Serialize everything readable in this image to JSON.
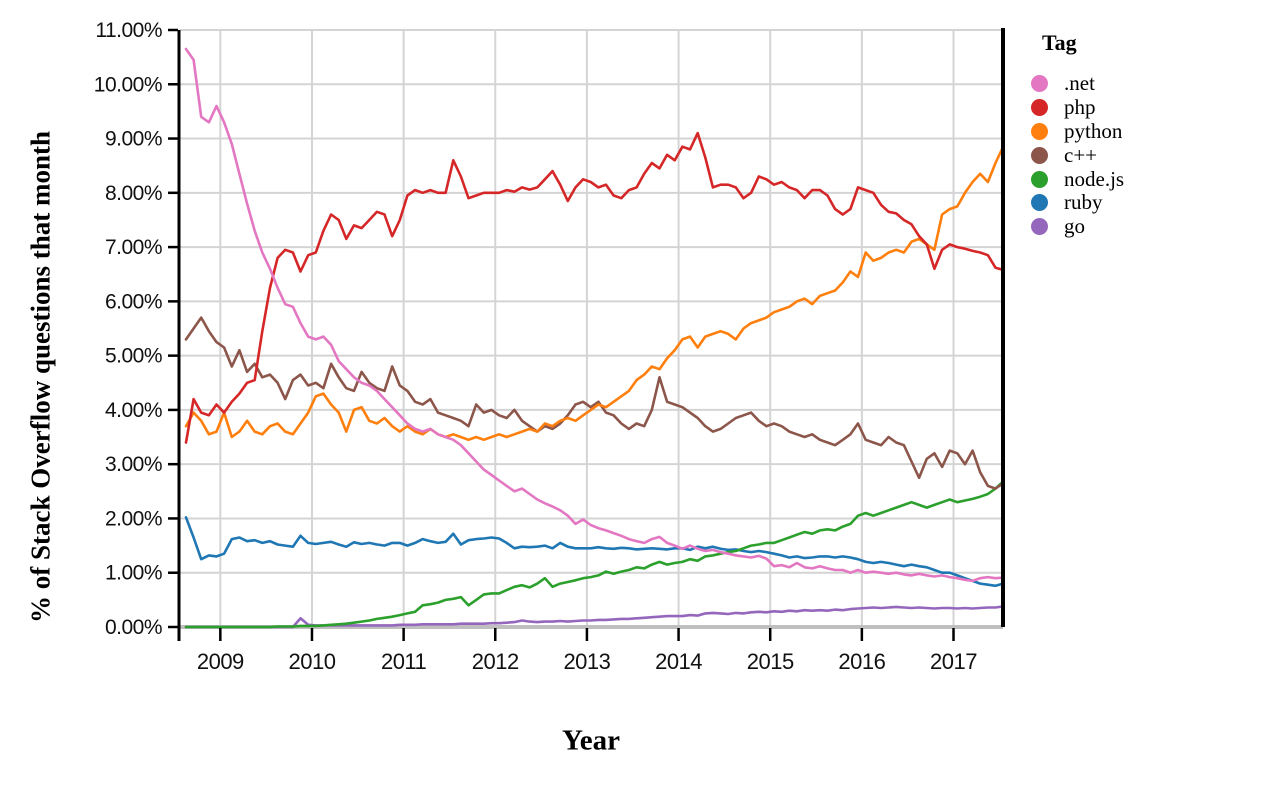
{
  "chart_data": {
    "type": "line",
    "title": "",
    "xlabel": "Year",
    "ylabel": "% of Stack Overflow questions that month",
    "legend_title": "Tag",
    "legend_position": "right",
    "grid": true,
    "background": "#ffffff",
    "grid_color": "#d4d4d4",
    "baseline_color": "#bfbfbf",
    "axis_color": "#000000",
    "x_unit": "month",
    "x_start": "2008-08",
    "x_end": "2017-07",
    "xlim": [
      2008.56,
      2017.54
    ],
    "ylim": [
      0,
      11
    ],
    "x_ticks": [
      2009,
      2010,
      2011,
      2012,
      2013,
      2014,
      2015,
      2016,
      2017
    ],
    "y_tick_values": [
      0,
      1,
      2,
      3,
      4,
      5,
      6,
      7,
      8,
      9,
      10,
      11
    ],
    "y_tick_labels": [
      "0.00%",
      "1.00%",
      "2.00%",
      "3.00%",
      "4.00%",
      "5.00%",
      "6.00%",
      "7.00%",
      "8.00%",
      "9.00%",
      "10.00%",
      "11.00%"
    ],
    "series": [
      {
        "name": ".net",
        "color": "#e377c2",
        "values": [
          10.65,
          10.45,
          9.4,
          9.3,
          9.6,
          9.3,
          8.9,
          8.35,
          7.8,
          7.3,
          6.9,
          6.6,
          6.25,
          5.95,
          5.9,
          5.6,
          5.35,
          5.3,
          5.35,
          5.2,
          4.9,
          4.75,
          4.6,
          4.5,
          4.45,
          4.35,
          4.2,
          4.05,
          3.9,
          3.75,
          3.65,
          3.6,
          3.65,
          3.55,
          3.5,
          3.45,
          3.35,
          3.2,
          3.05,
          2.9,
          2.8,
          2.7,
          2.6,
          2.5,
          2.55,
          2.45,
          2.35,
          2.28,
          2.22,
          2.15,
          2.05,
          1.9,
          1.98,
          1.88,
          1.82,
          1.78,
          1.73,
          1.68,
          1.62,
          1.58,
          1.55,
          1.62,
          1.66,
          1.55,
          1.5,
          1.44,
          1.5,
          1.44,
          1.4,
          1.42,
          1.38,
          1.35,
          1.32,
          1.3,
          1.28,
          1.31,
          1.26,
          1.12,
          1.14,
          1.1,
          1.18,
          1.1,
          1.08,
          1.12,
          1.08,
          1.05,
          1.05,
          1.0,
          1.05,
          1.0,
          1.02,
          1.0,
          0.98,
          1.0,
          0.97,
          0.95,
          0.98,
          0.95,
          0.93,
          0.95,
          0.92,
          0.9,
          0.87,
          0.85,
          0.9,
          0.92,
          0.9,
          0.91
        ]
      },
      {
        "name": "php",
        "color": "#d62728",
        "values": [
          3.4,
          4.2,
          3.95,
          3.9,
          4.1,
          3.95,
          4.15,
          4.3,
          4.5,
          4.55,
          5.45,
          6.25,
          6.8,
          6.95,
          6.9,
          6.55,
          6.85,
          6.9,
          7.3,
          7.6,
          7.5,
          7.15,
          7.4,
          7.35,
          7.5,
          7.65,
          7.6,
          7.2,
          7.5,
          7.95,
          8.05,
          8.0,
          8.05,
          8.0,
          8.0,
          8.6,
          8.3,
          7.9,
          7.95,
          8.0,
          8.0,
          8.0,
          8.05,
          8.02,
          8.1,
          8.06,
          8.1,
          8.25,
          8.4,
          8.15,
          7.85,
          8.1,
          8.25,
          8.2,
          8.1,
          8.15,
          7.95,
          7.9,
          8.05,
          8.1,
          8.35,
          8.55,
          8.45,
          8.7,
          8.6,
          8.85,
          8.8,
          9.1,
          8.65,
          8.1,
          8.15,
          8.15,
          8.1,
          7.9,
          8.0,
          8.3,
          8.25,
          8.15,
          8.2,
          8.1,
          8.05,
          7.9,
          8.05,
          8.05,
          7.95,
          7.7,
          7.6,
          7.7,
          8.1,
          8.05,
          8.0,
          7.78,
          7.65,
          7.62,
          7.5,
          7.42,
          7.2,
          7.05,
          6.6,
          6.95,
          7.05,
          7.0,
          6.97,
          6.93,
          6.9,
          6.85,
          6.62,
          6.58
        ]
      },
      {
        "name": "python",
        "color": "#ff7f0e",
        "values": [
          3.7,
          3.95,
          3.8,
          3.55,
          3.6,
          3.95,
          3.5,
          3.6,
          3.8,
          3.6,
          3.55,
          3.7,
          3.75,
          3.6,
          3.55,
          3.75,
          3.95,
          4.25,
          4.3,
          4.1,
          3.95,
          3.6,
          4.0,
          4.05,
          3.8,
          3.75,
          3.85,
          3.7,
          3.6,
          3.7,
          3.6,
          3.55,
          3.65,
          3.55,
          3.5,
          3.55,
          3.5,
          3.45,
          3.5,
          3.45,
          3.5,
          3.55,
          3.5,
          3.55,
          3.6,
          3.65,
          3.6,
          3.75,
          3.7,
          3.8,
          3.85,
          3.8,
          3.9,
          4.0,
          4.1,
          4.05,
          4.15,
          4.25,
          4.35,
          4.55,
          4.65,
          4.8,
          4.75,
          4.95,
          5.1,
          5.3,
          5.35,
          5.15,
          5.35,
          5.4,
          5.45,
          5.4,
          5.3,
          5.5,
          5.6,
          5.65,
          5.7,
          5.8,
          5.85,
          5.9,
          6.0,
          6.05,
          5.95,
          6.1,
          6.15,
          6.2,
          6.35,
          6.55,
          6.45,
          6.9,
          6.75,
          6.8,
          6.9,
          6.95,
          6.9,
          7.1,
          7.15,
          7.05,
          6.95,
          7.6,
          7.7,
          7.75,
          8.0,
          8.2,
          8.35,
          8.2,
          8.55,
          8.85
        ]
      },
      {
        "name": "c++",
        "color": "#8c564b",
        "values": [
          5.3,
          5.5,
          5.7,
          5.45,
          5.25,
          5.15,
          4.8,
          5.1,
          4.7,
          4.85,
          4.6,
          4.65,
          4.5,
          4.2,
          4.55,
          4.65,
          4.45,
          4.5,
          4.4,
          4.85,
          4.6,
          4.4,
          4.35,
          4.7,
          4.5,
          4.4,
          4.35,
          4.8,
          4.45,
          4.35,
          4.15,
          4.1,
          4.2,
          3.95,
          3.9,
          3.85,
          3.8,
          3.7,
          4.1,
          3.95,
          4.0,
          3.9,
          3.85,
          4.0,
          3.8,
          3.7,
          3.6,
          3.7,
          3.65,
          3.75,
          3.9,
          4.1,
          4.15,
          4.05,
          4.15,
          3.95,
          3.9,
          3.75,
          3.65,
          3.75,
          3.7,
          4.0,
          4.6,
          4.15,
          4.1,
          4.05,
          3.95,
          3.85,
          3.7,
          3.6,
          3.65,
          3.75,
          3.85,
          3.9,
          3.95,
          3.8,
          3.7,
          3.75,
          3.7,
          3.6,
          3.55,
          3.5,
          3.55,
          3.45,
          3.4,
          3.35,
          3.45,
          3.55,
          3.75,
          3.45,
          3.4,
          3.35,
          3.5,
          3.4,
          3.35,
          3.05,
          2.75,
          3.1,
          3.2,
          2.95,
          3.25,
          3.2,
          3.0,
          3.25,
          2.85,
          2.6,
          2.55,
          2.65
        ]
      },
      {
        "name": "node.js",
        "color": "#2ca02c",
        "values": [
          0,
          0,
          0,
          0,
          0,
          0,
          0,
          0,
          0,
          0,
          0,
          0,
          0.01,
          0.01,
          0.01,
          0.02,
          0.02,
          0.02,
          0.03,
          0.04,
          0.05,
          0.06,
          0.08,
          0.1,
          0.12,
          0.15,
          0.17,
          0.19,
          0.22,
          0.25,
          0.28,
          0.4,
          0.42,
          0.45,
          0.5,
          0.52,
          0.55,
          0.4,
          0.5,
          0.6,
          0.62,
          0.62,
          0.68,
          0.74,
          0.77,
          0.73,
          0.8,
          0.9,
          0.74,
          0.8,
          0.83,
          0.86,
          0.9,
          0.92,
          0.95,
          1.02,
          0.98,
          1.02,
          1.05,
          1.1,
          1.08,
          1.15,
          1.2,
          1.15,
          1.18,
          1.2,
          1.25,
          1.22,
          1.3,
          1.32,
          1.35,
          1.38,
          1.4,
          1.45,
          1.5,
          1.52,
          1.55,
          1.55,
          1.6,
          1.65,
          1.7,
          1.75,
          1.72,
          1.78,
          1.8,
          1.78,
          1.85,
          1.9,
          2.05,
          2.1,
          2.05,
          2.1,
          2.15,
          2.2,
          2.25,
          2.3,
          2.25,
          2.2,
          2.25,
          2.3,
          2.35,
          2.3,
          2.33,
          2.36,
          2.4,
          2.45,
          2.55,
          2.68
        ]
      },
      {
        "name": "ruby",
        "color": "#1f77b4",
        "values": [
          2.02,
          1.65,
          1.25,
          1.32,
          1.3,
          1.35,
          1.62,
          1.65,
          1.58,
          1.6,
          1.55,
          1.58,
          1.52,
          1.5,
          1.48,
          1.68,
          1.55,
          1.53,
          1.55,
          1.57,
          1.52,
          1.48,
          1.56,
          1.53,
          1.55,
          1.52,
          1.5,
          1.55,
          1.55,
          1.5,
          1.55,
          1.62,
          1.58,
          1.55,
          1.57,
          1.72,
          1.52,
          1.6,
          1.62,
          1.63,
          1.65,
          1.63,
          1.55,
          1.45,
          1.48,
          1.47,
          1.48,
          1.5,
          1.45,
          1.55,
          1.48,
          1.45,
          1.45,
          1.45,
          1.47,
          1.45,
          1.44,
          1.46,
          1.45,
          1.43,
          1.44,
          1.45,
          1.44,
          1.43,
          1.45,
          1.45,
          1.42,
          1.48,
          1.45,
          1.48,
          1.44,
          1.42,
          1.43,
          1.4,
          1.38,
          1.4,
          1.38,
          1.35,
          1.32,
          1.28,
          1.3,
          1.27,
          1.28,
          1.3,
          1.3,
          1.28,
          1.3,
          1.28,
          1.25,
          1.2,
          1.18,
          1.2,
          1.18,
          1.15,
          1.12,
          1.15,
          1.12,
          1.1,
          1.05,
          1.0,
          1.0,
          0.95,
          0.9,
          0.85,
          0.8,
          0.78,
          0.76,
          0.8
        ]
      },
      {
        "name": "go",
        "color": "#9467bd",
        "values": [
          0,
          0,
          0,
          0,
          0,
          0,
          0,
          0,
          0,
          0,
          0,
          0,
          0,
          0,
          0,
          0.16,
          0.04,
          0.03,
          0.03,
          0.03,
          0.03,
          0.03,
          0.03,
          0.03,
          0.03,
          0.03,
          0.03,
          0.03,
          0.04,
          0.04,
          0.04,
          0.05,
          0.05,
          0.05,
          0.05,
          0.05,
          0.06,
          0.06,
          0.06,
          0.06,
          0.07,
          0.07,
          0.08,
          0.09,
          0.12,
          0.1,
          0.09,
          0.1,
          0.1,
          0.11,
          0.1,
          0.11,
          0.12,
          0.12,
          0.13,
          0.13,
          0.14,
          0.15,
          0.15,
          0.16,
          0.17,
          0.18,
          0.19,
          0.2,
          0.2,
          0.2,
          0.22,
          0.21,
          0.25,
          0.26,
          0.25,
          0.24,
          0.26,
          0.25,
          0.27,
          0.28,
          0.27,
          0.29,
          0.28,
          0.3,
          0.29,
          0.31,
          0.3,
          0.31,
          0.3,
          0.32,
          0.31,
          0.33,
          0.34,
          0.35,
          0.36,
          0.35,
          0.36,
          0.37,
          0.36,
          0.35,
          0.36,
          0.35,
          0.34,
          0.35,
          0.35,
          0.34,
          0.35,
          0.34,
          0.35,
          0.36,
          0.36,
          0.38
        ]
      }
    ]
  }
}
